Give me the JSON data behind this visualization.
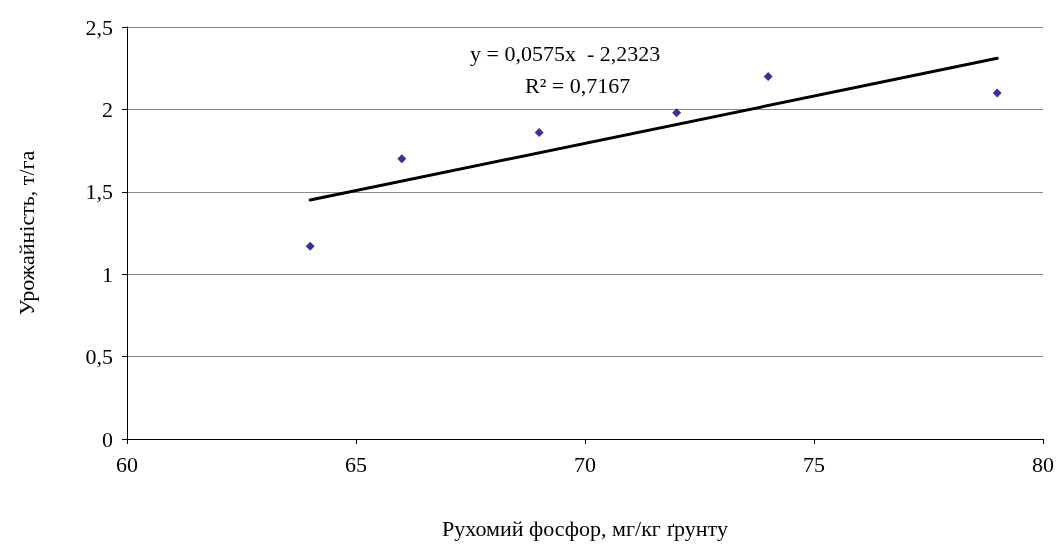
{
  "chart_data": {
    "type": "scatter",
    "xlabel": "Рухомий фосфор, мг/кг ґрунту",
    "ylabel": "Урожайність, т/га",
    "xlim": [
      60,
      80
    ],
    "xticks": [
      60,
      65,
      70,
      75,
      80
    ],
    "ylim": [
      0,
      2.5
    ],
    "yticks": [
      0,
      {
        "value": 0.5,
        "label": "0,5"
      },
      1,
      {
        "value": 1.5,
        "label": "1,5"
      },
      2,
      {
        "value": 2.5,
        "label": "2,5"
      }
    ],
    "grid": "y",
    "marker": "diamond",
    "series": [
      {
        "color": "#000080",
        "x": [
          64,
          66,
          69,
          72,
          74,
          79
        ],
        "values": [
          1.17,
          1.7,
          1.86,
          1.98,
          2.2,
          2.1
        ]
      },
      {
        "type": "line",
        "color": "#000000",
        "marker": "none",
        "x": [
          64,
          79
        ],
        "values": [
          1.45,
          2.31
        ]
      }
    ],
    "annotations": [
      "y = 0,0575x  - 2,2323",
      "R² = 0,7167"
    ]
  }
}
